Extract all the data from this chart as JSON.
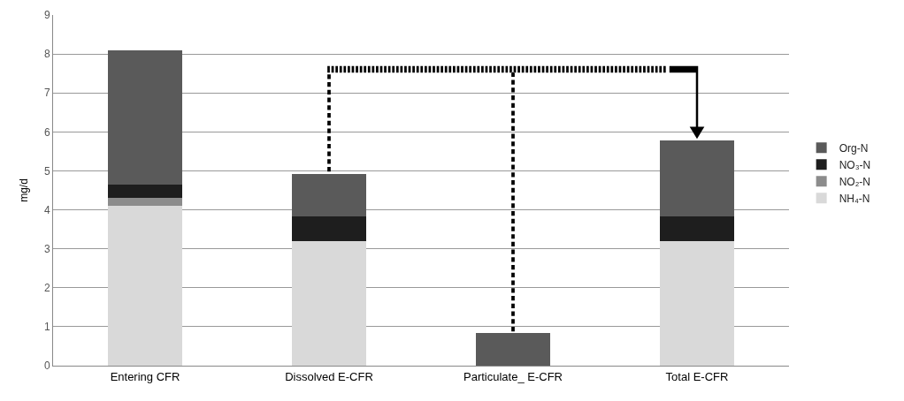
{
  "chart_data": {
    "type": "bar",
    "stacked": true,
    "ylabel": "mg/d",
    "categories": [
      "Entering CFR",
      "Dissolved E-CFR",
      "Particulate_ E-CFR",
      "Total E-CFR"
    ],
    "series": [
      {
        "name": "NH₄-N",
        "color": "#d9d9d9",
        "values": [
          4.1,
          3.2,
          0,
          3.2
        ]
      },
      {
        "name": "NO₂-N",
        "color": "#8c8c8c",
        "values": [
          0.2,
          0,
          0,
          0
        ]
      },
      {
        "name": "NO₃-N",
        "color": "#1e1e1e",
        "values": [
          0.35,
          0.63,
          0,
          0.63
        ]
      },
      {
        "name": "Org-N",
        "color": "#5a5a5a",
        "values": [
          3.45,
          1.1,
          0.83,
          1.94
        ]
      }
    ],
    "ylim": [
      0,
      9
    ],
    "yticks": [
      0,
      1,
      2,
      3,
      4,
      5,
      6,
      7,
      8,
      9
    ],
    "grid": "y",
    "legend": "right"
  }
}
